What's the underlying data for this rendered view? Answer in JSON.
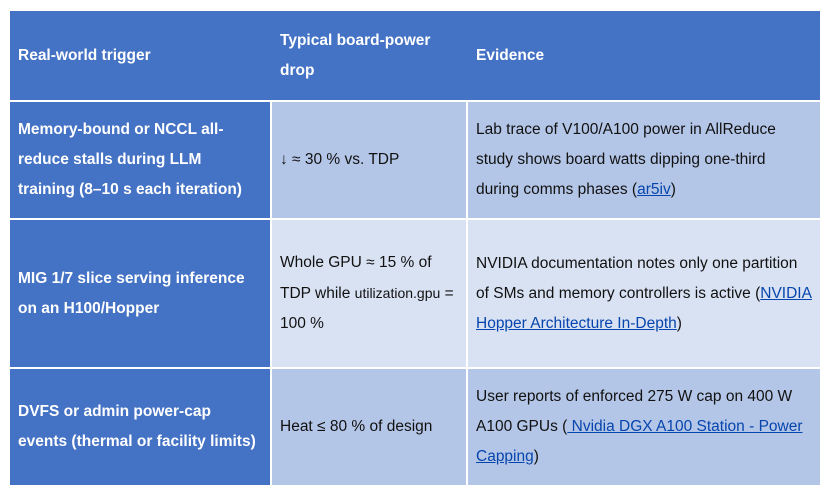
{
  "table": {
    "headers": [
      "Real-world trigger",
      "Typical board-power drop",
      "Evidence"
    ],
    "rows": [
      {
        "trigger": "Memory-bound or NCCL all-reduce stalls during LLM training (8–10 s each iteration)",
        "drop": "↓ ≈ 30 % vs. TDP",
        "evidence_text": "Lab trace of V100/A100 power in AllReduce study shows board watts dipping one-third during comms phases (",
        "evidence_link": "ar5iv",
        "evidence_tail": ")"
      },
      {
        "trigger": "MIG 1/7 slice serving inference on an H100/Hopper",
        "drop_a": "Whole GPU ≈ 15 % of TDP while ",
        "drop_code": "utilization.gpu",
        "drop_b": " = 100 %",
        "evidence_text": "NVIDIA documentation notes only one partition of SMs and memory controllers is active (",
        "evidence_link": "NVIDIA Hopper Architecture In-Depth",
        "evidence_tail": ")"
      },
      {
        "trigger": "DVFS or admin power-cap events (thermal or facility limits)",
        "drop": "Heat ≤ 80 % of design",
        "evidence_text": "User reports of enforced 275 W cap on 400 W A100 GPUs (",
        "evidence_link": " Nvidia DGX A100 Station - Power Capping",
        "evidence_tail": ")"
      }
    ]
  },
  "colors": {
    "header_bg": "#4472c4",
    "row_dark": "#b4c6e7",
    "row_light": "#d9e2f3",
    "link": "#0645ad"
  }
}
